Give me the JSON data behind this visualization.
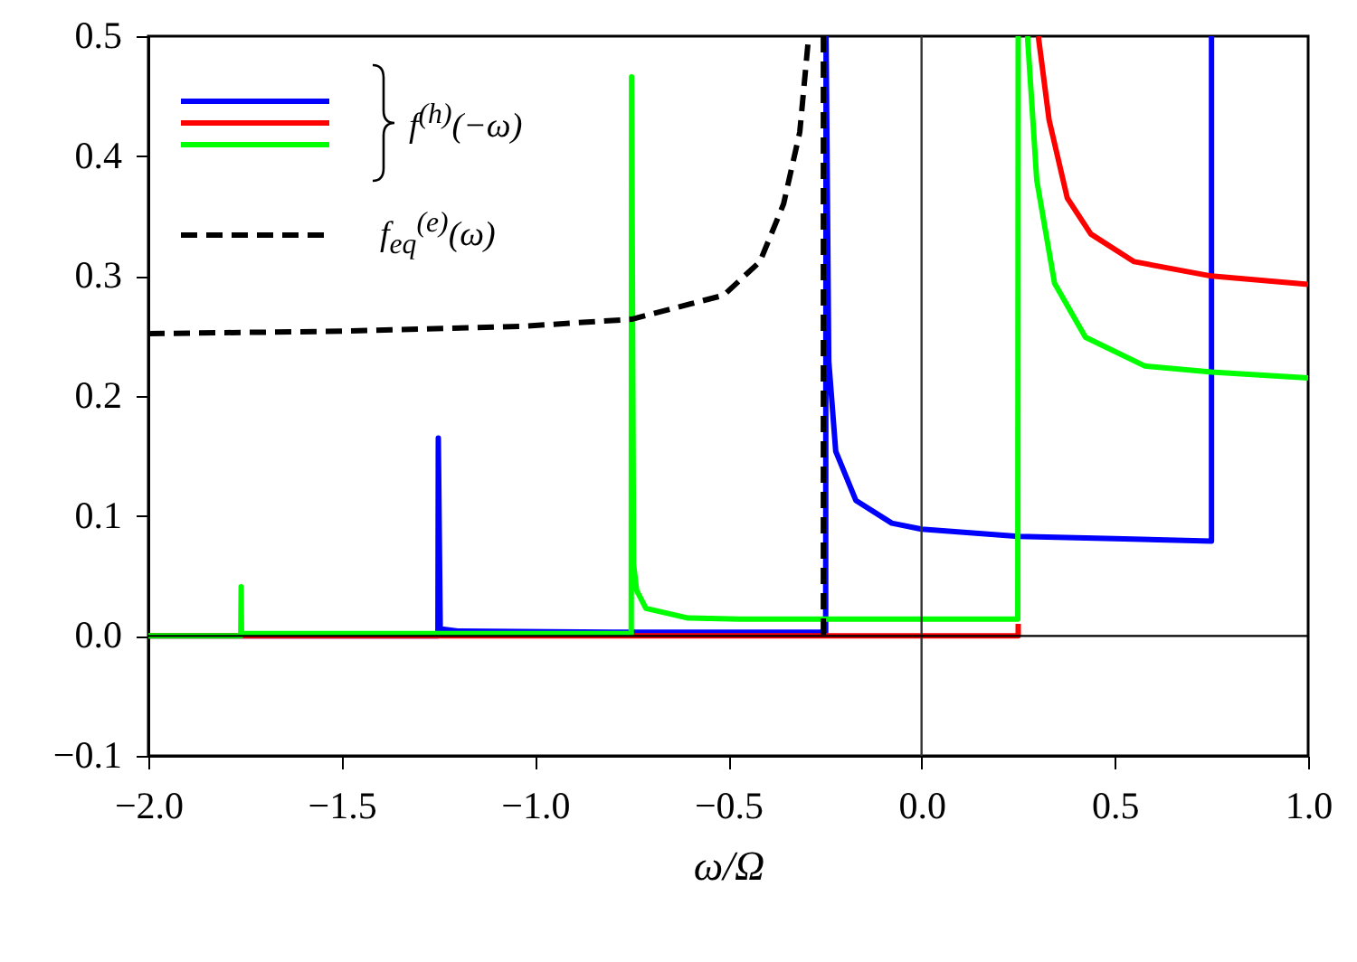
{
  "chart_data": {
    "type": "line",
    "xlabel": "ω/Ω",
    "xlim": [
      -2,
      1
    ],
    "ylim": [
      -0.1,
      0.5
    ],
    "xticks": [
      {
        "value": -2,
        "label": "−2.0"
      },
      {
        "value": -1.5,
        "label": "−1.5"
      },
      {
        "value": -1,
        "label": "−1.0"
      },
      {
        "value": -0.5,
        "label": "−0.5"
      },
      {
        "value": 0,
        "label": "0.0"
      },
      0.5,
      {
        "value": 1,
        "label": "1.0"
      }
    ],
    "yticks": [
      {
        "value": -0.1,
        "label": "−0.1"
      },
      {
        "value": 0,
        "label": "0.0"
      },
      0.1,
      0.2,
      0.3,
      0.4,
      0.5
    ],
    "grid": false,
    "legend": "top left",
    "marker": "none",
    "ref_lines": [
      {
        "axis": "x",
        "value": 0,
        "color": "#333333"
      },
      {
        "axis": "y",
        "value": 0,
        "color": "#000000"
      }
    ],
    "series": [
      {
        "name": "f$^{(h)}$(−ω)",
        "color": "#0000ff",
        "line_style": "solid",
        "x": [
          -2,
          -1.251,
          -1.25,
          -1.245,
          -1.2,
          -0.8,
          -0.248,
          -0.247,
          -0.24,
          -0.222,
          -0.17,
          -0.077,
          0,
          0.25,
          0.5,
          0.75,
          0.75
        ],
        "values": [
          0,
          0,
          0.165,
          0.006,
          0.004,
          0.003,
          0.003,
          0.5,
          0.229,
          0.154,
          0.113,
          0.094,
          0.089,
          0.083,
          0.081,
          0.079,
          0.5
        ]
      },
      {
        "color": "#ff0000",
        "line_style": "solid",
        "x": [
          -2,
          0.25,
          0.25,
          0.27,
          0.302,
          0.33,
          0.377,
          0.438,
          0.55,
          0.75,
          1
        ],
        "values": [
          0,
          0,
          0.01,
          null,
          0.5,
          0.43,
          0.365,
          0.335,
          0.312,
          0.3,
          0.293
        ]
      },
      {
        "color": "#00ff00",
        "line_style": "solid",
        "x": [
          -2,
          -1.761,
          -1.76,
          -1.759,
          -1.2,
          -0.751,
          -0.75,
          -0.745,
          -0.737,
          -0.713,
          -0.606,
          -0.47,
          0,
          0.249,
          0.25,
          0.26,
          0.274,
          0.298,
          0.344,
          0.424,
          0.578,
          0.75,
          1
        ],
        "values": [
          0,
          0,
          0.041,
          0.002,
          0.002,
          0.002,
          0.466,
          0.06,
          0.038,
          0.023,
          0.015,
          0.014,
          0.014,
          0.014,
          0.5,
          null,
          0.5,
          0.38,
          0.294,
          0.249,
          0.225,
          0.22,
          0.215
        ]
      },
      {
        "name": "f$_{eq}$$^{(e)}$(ω)",
        "color": "#000000",
        "line_style": "dashed",
        "x": [
          -2,
          -1.5,
          -1.04,
          -0.75,
          -0.512,
          -0.418,
          -0.357,
          -0.315,
          -0.292,
          -0.27,
          -0.254,
          -0.254,
          -0.235
        ],
        "values": [
          0.252,
          0.254,
          0.258,
          0.264,
          0.284,
          0.312,
          0.36,
          0.42,
          0.5,
          null,
          0.5,
          0,
          0
        ]
      }
    ]
  }
}
